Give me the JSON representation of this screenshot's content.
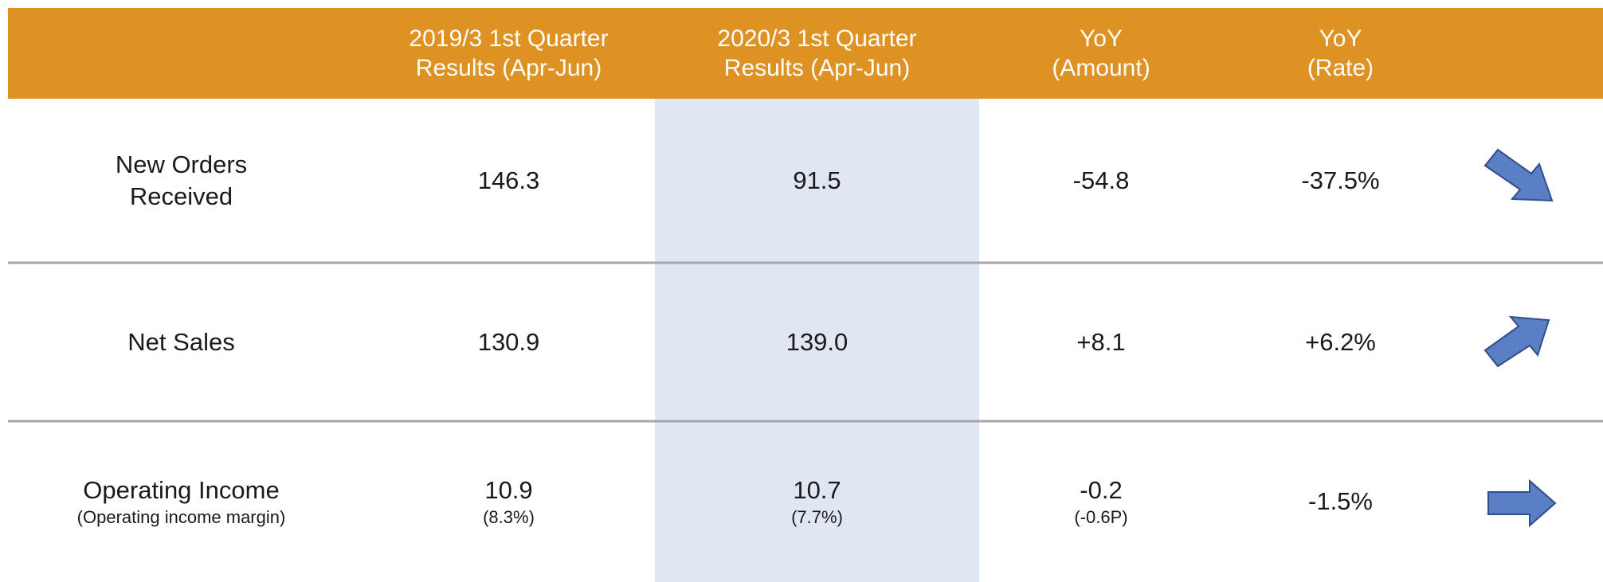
{
  "header": {
    "columns": [
      [
        "2019/3 1st Quarter",
        "Results  (Apr-Jun)"
      ],
      [
        "2020/3 1st Quarter",
        "Results  (Apr-Jun)"
      ],
      [
        "YoY",
        "(Amount)"
      ],
      [
        "YoY",
        "(Rate)"
      ]
    ]
  },
  "table": {
    "rows": [
      {
        "label": [
          "New Orders",
          "Received"
        ],
        "cells": [
          "146.3",
          "91.5",
          "-54.8",
          "-37.5%"
        ]
      },
      {
        "label": [
          "Net Sales"
        ],
        "cells": [
          "130.9",
          "139.0",
          "+8.1",
          "+6.2%"
        ]
      },
      {
        "label": [
          "Operating Income"
        ],
        "sublabel": "(Operating income margin)",
        "cells": [
          "10.9",
          "10.7",
          "-0.2",
          "-1.5%"
        ],
        "subcells": [
          "(8.3%)",
          "(7.7%)",
          "(-0.6P)"
        ]
      }
    ]
  }
}
